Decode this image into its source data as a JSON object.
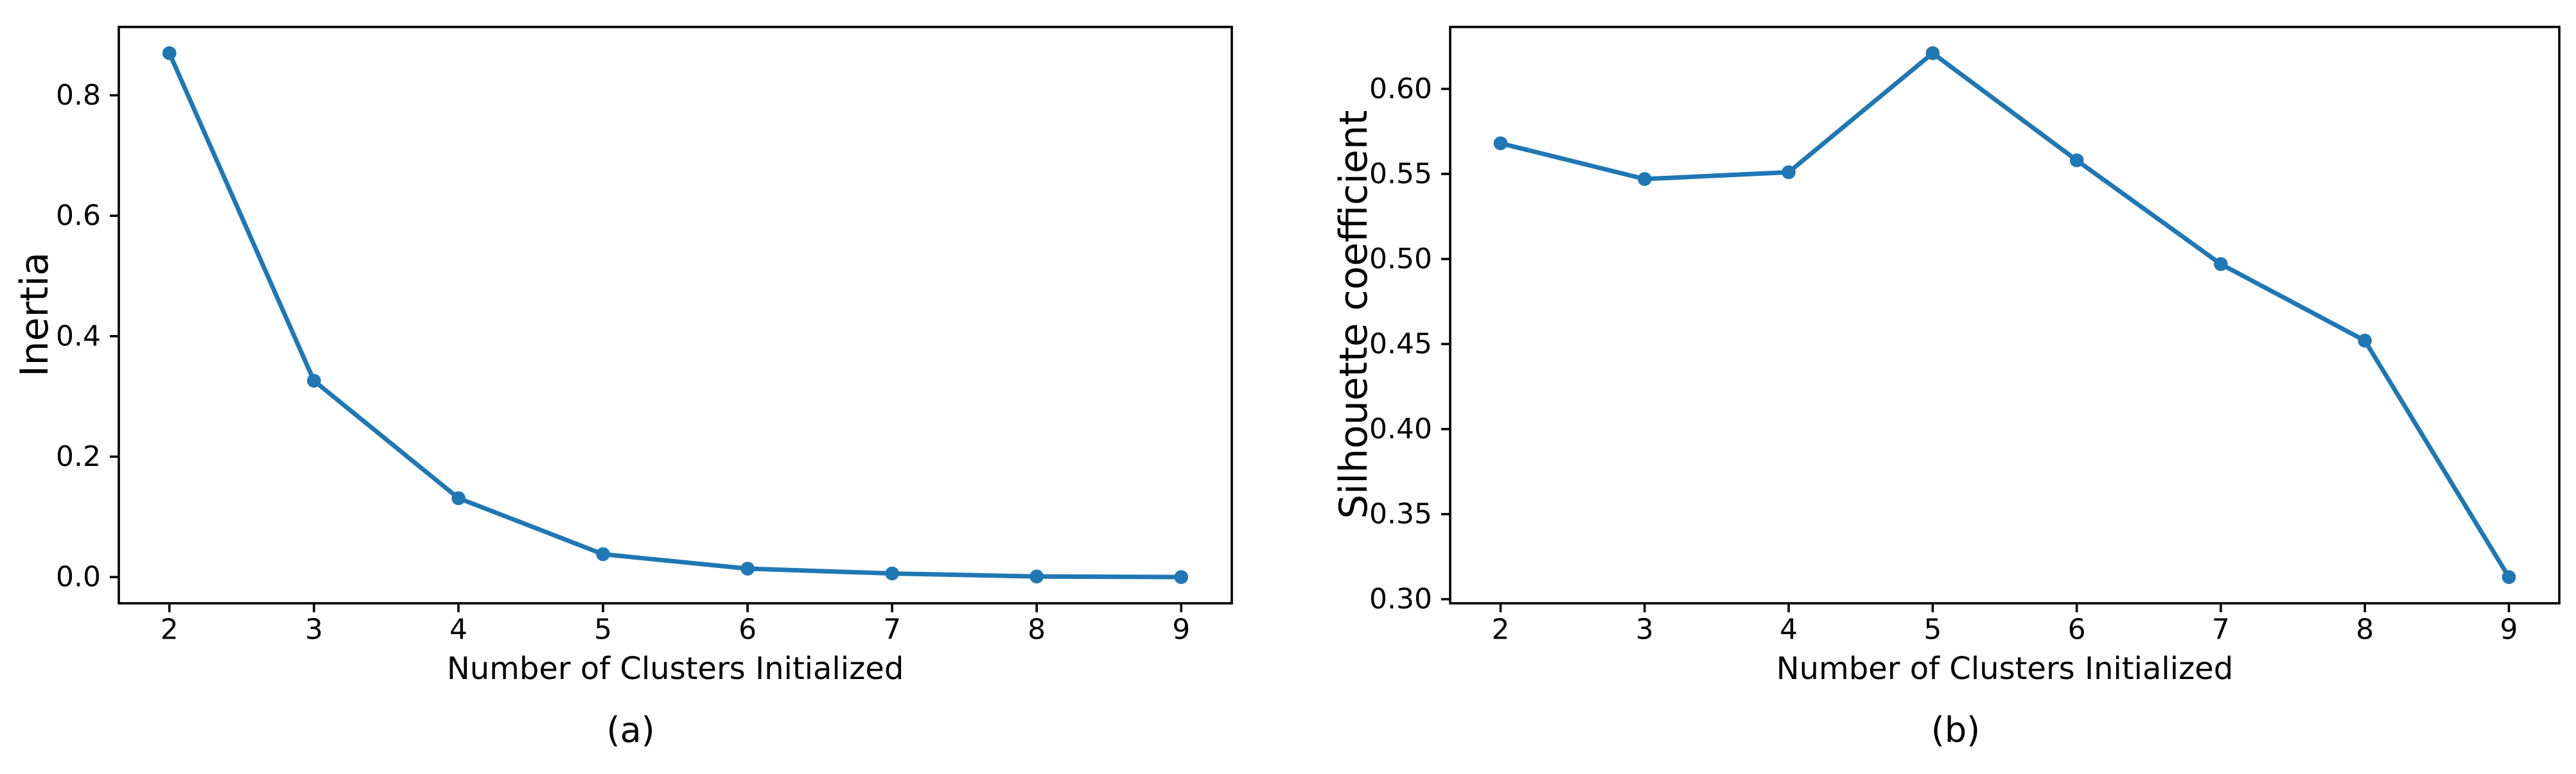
{
  "figure": {
    "colors": {
      "background": "#ffffff",
      "axis": "#000000",
      "line": "#1f77b4",
      "marker": "#1f77b4",
      "text": "#000000"
    }
  },
  "chart_data": [
    {
      "type": "line",
      "title": "",
      "caption": "(a)",
      "xlabel": "Number of Clusters Initialized",
      "ylabel": "Inertia",
      "x": [
        2,
        3,
        4,
        5,
        6,
        7,
        8,
        9
      ],
      "values": [
        0.87,
        0.326,
        0.131,
        0.038,
        0.014,
        0.006,
        0.001,
        0.0
      ],
      "xticks": [
        "2",
        "3",
        "4",
        "5",
        "6",
        "7",
        "8",
        "9"
      ],
      "yticks": [
        "0.0",
        "0.2",
        "0.4",
        "0.6",
        "0.8"
      ],
      "xlim": [
        1.65,
        9.35
      ],
      "ylim": [
        -0.0435,
        0.9135
      ],
      "grid": false,
      "legend": null,
      "marker": "circle"
    },
    {
      "type": "line",
      "title": "",
      "caption": "(b)",
      "xlabel": "Number of Clusters Initialized",
      "ylabel": "Silhouette coefficient",
      "x": [
        2,
        3,
        4,
        5,
        6,
        7,
        8,
        9
      ],
      "values": [
        0.568,
        0.547,
        0.551,
        0.621,
        0.558,
        0.497,
        0.452,
        0.313
      ],
      "xticks": [
        "2",
        "3",
        "4",
        "5",
        "6",
        "7",
        "8",
        "9"
      ],
      "yticks": [
        "0.30",
        "0.35",
        "0.40",
        "0.45",
        "0.50",
        "0.55",
        "0.60"
      ],
      "xlim": [
        1.65,
        9.35
      ],
      "ylim": [
        0.2976,
        0.6364
      ],
      "grid": false,
      "legend": null,
      "marker": "circle"
    }
  ]
}
